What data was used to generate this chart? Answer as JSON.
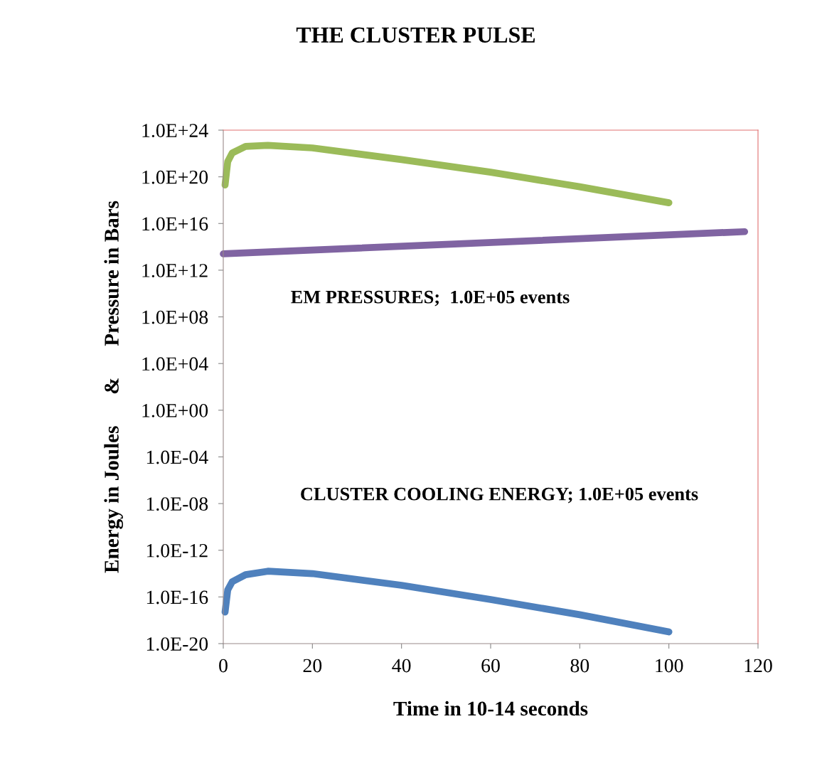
{
  "chart_data": {
    "type": "line",
    "title": "THE CLUSTER PULSE",
    "xlabel": "Time in 10-14 seconds",
    "ylabel": "Energy in Joules      &      Pressure in Bars",
    "annotations": [
      "EM PRESSURES;  1.0E+05 events",
      "CLUSTER COOLING ENERGY; 1.0E+05 events"
    ],
    "log": "y",
    "grid": false,
    "line_style": "solid",
    "marker": "none",
    "xlim": [
      0,
      120
    ],
    "xticks": [
      0,
      20,
      40,
      60,
      80,
      100,
      120
    ],
    "ylim": [
      1e-20,
      1e+24
    ],
    "yticks": [
      {
        "value": 1e-20,
        "label": "1.0E-20"
      },
      {
        "value": 1e-16,
        "label": "1.0E-16"
      },
      {
        "value": 1e-12,
        "label": "1.0E-12"
      },
      {
        "value": 1e-08,
        "label": "1.0E-08"
      },
      {
        "value": 0.0001,
        "label": "1.0E-04"
      },
      {
        "value": 1,
        "label": "1.0E+00"
      },
      {
        "value": 10000,
        "label": "1.0E+04"
      },
      {
        "value": 100000000.0,
        "label": "1.0E+08"
      },
      {
        "value": 1000000000000.0,
        "label": "1.0E+12"
      },
      {
        "value": 1e+16,
        "label": "1.0E+16"
      },
      {
        "value": 1e+20,
        "label": "1.0E+20"
      },
      {
        "value": 1e+24,
        "label": "1.0E+24"
      }
    ],
    "series": [
      {
        "color": "#9bbb59",
        "x": [
          0.4,
          1,
          2,
          5,
          10,
          20,
          40,
          60,
          80,
          100
        ],
        "values": [
          2e+19,
          2e+21,
          1.1e+22,
          4e+22,
          5e+22,
          3e+22,
          3e+21,
          2.5e+20,
          1.4e+19,
          6e+17
        ]
      },
      {
        "color": "#8064a2",
        "x": [
          0,
          117
        ],
        "values": [
          25000000000000.0,
          2000000000000000.0
        ]
      },
      {
        "color": "#4f81bd",
        "x": [
          0.4,
          1,
          2,
          5,
          10,
          20,
          40,
          60,
          80,
          100
        ],
        "values": [
          5e-18,
          4e-16,
          2e-15,
          8e-15,
          1.6e-14,
          1e-14,
          1e-15,
          6e-17,
          3e-18,
          1e-19
        ]
      }
    ]
  }
}
